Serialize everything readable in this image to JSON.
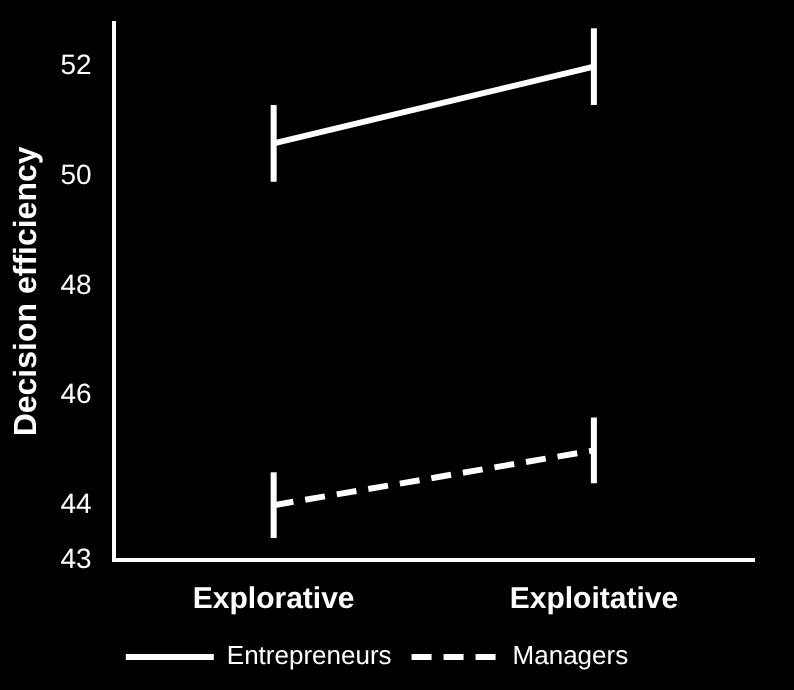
{
  "chart_data": {
    "type": "line",
    "ylabel": "Decision efficiency",
    "categories": [
      "Explorative",
      "Exploitative"
    ],
    "series": [
      {
        "name": "Entrepreneurs",
        "color": "#ffffff",
        "values": [
          50.6,
          52
        ],
        "errors": [
          0.7,
          0.7
        ],
        "line_style": "solid"
      },
      {
        "name": "Managers",
        "color": "#ffffff",
        "values": [
          44,
          45
        ],
        "errors": [
          0.6,
          0.6
        ],
        "line_style": "dashed"
      }
    ],
    "ylim": [
      43,
      52.8
    ],
    "yticks": [
      43,
      44,
      46,
      48,
      50,
      52
    ],
    "grid": false,
    "legend": "bottom",
    "marker": "none"
  }
}
